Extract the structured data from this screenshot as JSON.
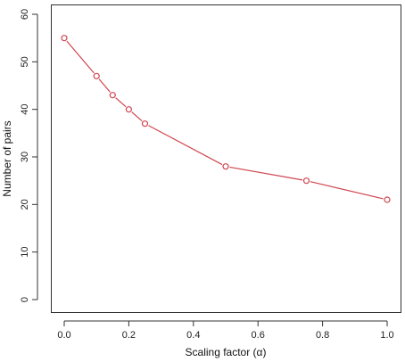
{
  "chart_data": {
    "type": "line",
    "title": "",
    "xlabel": "Scaling factor (α)",
    "ylabel": "Number of pairs",
    "xlim": [
      0.0,
      1.0
    ],
    "ylim": [
      0,
      60
    ],
    "x_ticks": [
      0.0,
      0.2,
      0.4,
      0.6,
      0.8,
      1.0
    ],
    "y_ticks": [
      0,
      10,
      20,
      30,
      40,
      50,
      60
    ],
    "x_tick_labels": [
      "0.0",
      "0.2",
      "0.4",
      "0.6",
      "0.8",
      "1.0"
    ],
    "y_tick_labels": [
      "0",
      "10",
      "20",
      "30",
      "40",
      "50",
      "60"
    ],
    "grid": false,
    "legend": "none",
    "series": [
      {
        "color": "#d0454f",
        "marker": "open-circle",
        "x": [
          0.0,
          0.1,
          0.15,
          0.2,
          0.25,
          0.5,
          0.75,
          1.0
        ],
        "y": [
          55,
          47,
          43,
          40,
          37,
          28,
          25,
          21
        ]
      }
    ]
  }
}
